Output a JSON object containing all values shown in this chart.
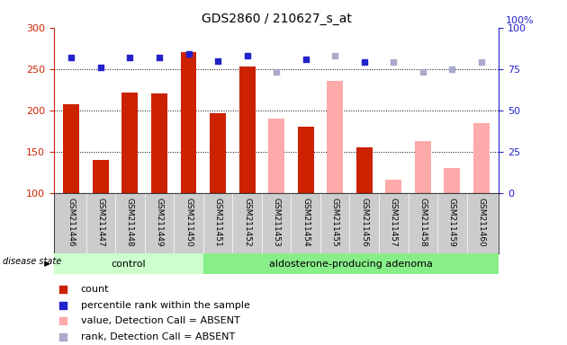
{
  "title": "GDS2860 / 210627_s_at",
  "samples": [
    "GSM211446",
    "GSM211447",
    "GSM211448",
    "GSM211449",
    "GSM211450",
    "GSM211451",
    "GSM211452",
    "GSM211453",
    "GSM211454",
    "GSM211455",
    "GSM211456",
    "GSM211457",
    "GSM211458",
    "GSM211459",
    "GSM211460"
  ],
  "control_count": 5,
  "groups": [
    "control",
    "aldosterone-producing adenoma"
  ],
  "bar_values": [
    207,
    140,
    222,
    220,
    270,
    197,
    253,
    null,
    180,
    null,
    155,
    null,
    null,
    null,
    null
  ],
  "bar_absent_values": [
    null,
    null,
    null,
    null,
    null,
    null,
    null,
    190,
    null,
    236,
    null,
    116,
    163,
    130,
    185
  ],
  "rank_values": [
    82,
    76,
    82,
    82,
    84,
    80,
    83,
    null,
    81,
    null,
    79,
    null,
    null,
    null,
    null
  ],
  "rank_absent_values": [
    null,
    null,
    null,
    null,
    null,
    null,
    null,
    73,
    null,
    83,
    null,
    79,
    73,
    75,
    79
  ],
  "ylim_left": [
    100,
    300
  ],
  "ylim_right": [
    0,
    100
  ],
  "yticks_left": [
    100,
    150,
    200,
    250,
    300
  ],
  "yticks_right": [
    0,
    25,
    50,
    75,
    100
  ],
  "bar_color": "#cc2200",
  "bar_absent_color": "#ffaaaa",
  "rank_color": "#2222cc",
  "rank_absent_color": "#aaaacc",
  "control_bg": "#ccffcc",
  "adenoma_bg": "#88ee88",
  "sample_bg": "#cccccc",
  "legend_items": [
    "count",
    "percentile rank within the sample",
    "value, Detection Call = ABSENT",
    "rank, Detection Call = ABSENT"
  ],
  "legend_colors": [
    "#cc2200",
    "#2222cc",
    "#ffaaaa",
    "#aaaacc"
  ],
  "disease_state_label": "disease state"
}
